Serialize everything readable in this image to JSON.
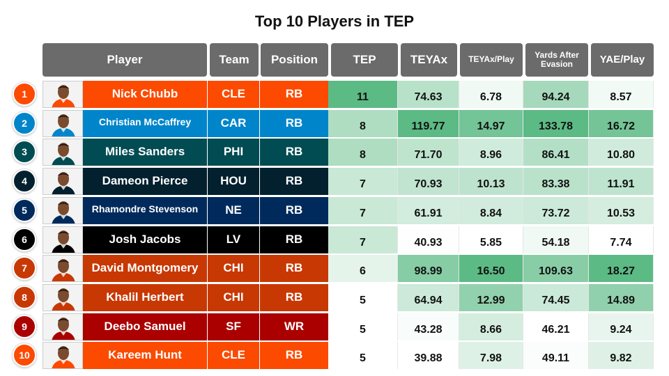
{
  "chart_data": {
    "type": "table",
    "title": "Top 10 Players in TEP",
    "columns": [
      "Player",
      "Team",
      "Position",
      "TEP",
      "TEYAx",
      "TEYAx/Play",
      "Yards After Evasion",
      "YAE/Play"
    ],
    "rows": [
      {
        "rank": "1",
        "player": "Nick Chubb",
        "team": "CLE",
        "position": "RB",
        "tep": "11",
        "teyax": "74.63",
        "teyax_play": "6.78",
        "yae": "94.24",
        "yae_play": "8.57",
        "team_color": "#fc4a00"
      },
      {
        "rank": "2",
        "player": "Christian McCaffrey",
        "team": "CAR",
        "position": "RB",
        "tep": "8",
        "teyax": "119.77",
        "teyax_play": "14.97",
        "yae": "133.78",
        "yae_play": "16.72",
        "team_color": "#0185ca"
      },
      {
        "rank": "3",
        "player": "Miles Sanders",
        "team": "PHI",
        "position": "RB",
        "tep": "8",
        "teyax": "71.70",
        "teyax_play": "8.96",
        "yae": "86.41",
        "yae_play": "10.80",
        "team_color": "#014c53"
      },
      {
        "rank": "4",
        "player": "Dameon Pierce",
        "team": "HOU",
        "position": "RB",
        "tep": "7",
        "teyax": "70.93",
        "teyax_play": "10.13",
        "yae": "83.38",
        "yae_play": "11.91",
        "team_color": "#03202f"
      },
      {
        "rank": "5",
        "player": "Rhamondre Stevenson",
        "team": "NE",
        "position": "RB",
        "tep": "7",
        "teyax": "61.91",
        "teyax_play": "8.84",
        "yae": "73.72",
        "yae_play": "10.53",
        "team_color": "#002a5c"
      },
      {
        "rank": "6",
        "player": "Josh Jacobs",
        "team": "LV",
        "position": "RB",
        "tep": "7",
        "teyax": "40.93",
        "teyax_play": "5.85",
        "yae": "54.18",
        "yae_play": "7.74",
        "team_color": "#000000"
      },
      {
        "rank": "7",
        "player": "David Montgomery",
        "team": "CHI",
        "position": "RB",
        "tep": "6",
        "teyax": "98.99",
        "teyax_play": "16.50",
        "yae": "109.63",
        "yae_play": "18.27",
        "team_color": "#c83803"
      },
      {
        "rank": "8",
        "player": "Khalil Herbert",
        "team": "CHI",
        "position": "RB",
        "tep": "5",
        "teyax": "64.94",
        "teyax_play": "12.99",
        "yae": "74.45",
        "yae_play": "14.89",
        "team_color": "#c83803"
      },
      {
        "rank": "9",
        "player": "Deebo Samuel",
        "team": "SF",
        "position": "WR",
        "tep": "5",
        "teyax": "43.28",
        "teyax_play": "8.66",
        "yae": "46.21",
        "yae_play": "9.24",
        "team_color": "#aa0000"
      },
      {
        "rank": "10",
        "player": "Kareem Hunt",
        "team": "CLE",
        "position": "RB",
        "tep": "5",
        "teyax": "39.88",
        "teyax_play": "7.98",
        "yae": "49.11",
        "yae_play": "9.82",
        "team_color": "#fc4a00"
      }
    ]
  },
  "colors": {
    "header_bg": "#6b6b6b",
    "heat_low": "#ffffff",
    "heat_high": "#5cba85"
  },
  "icons": {
    "player_photo": "player-headshot-icon"
  }
}
